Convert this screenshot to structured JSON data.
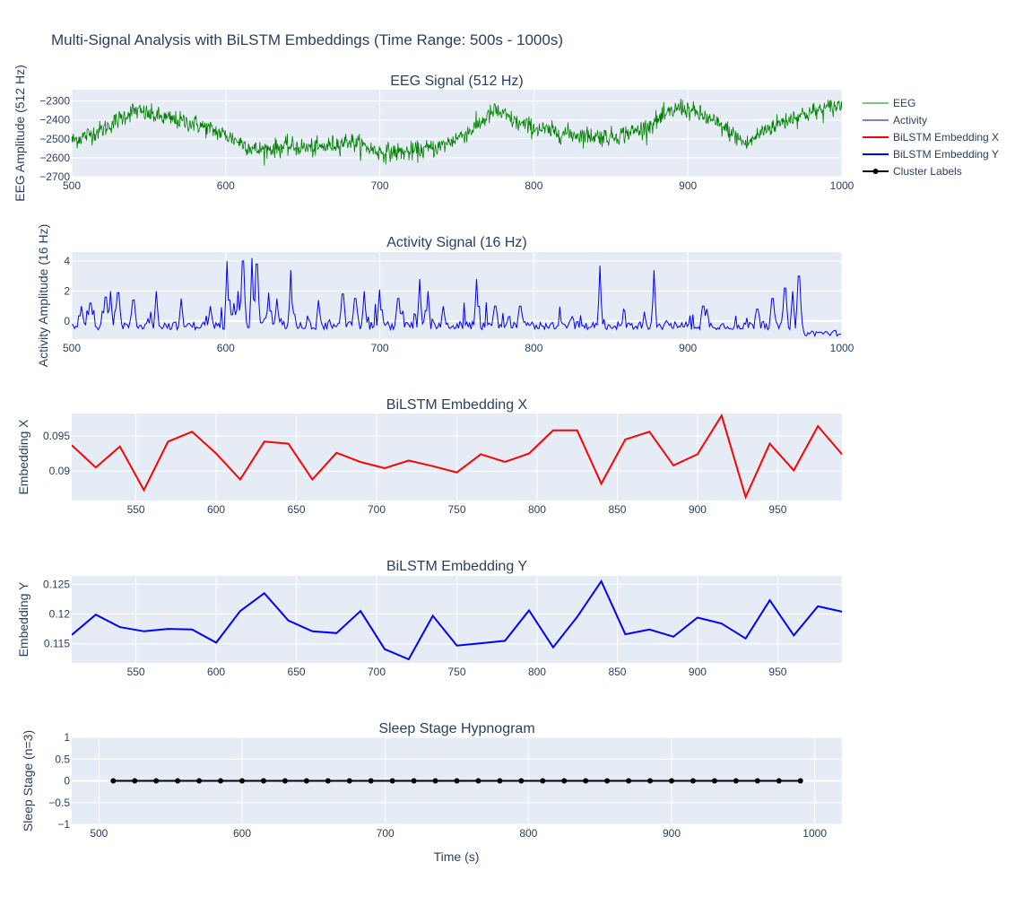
{
  "title": "Multi-Signal Analysis with BiLSTM Embeddings (Time Range: 500s - 1000s)",
  "xlabel": "Time (s)",
  "legend": [
    {
      "name": "EEG",
      "color": "#008000",
      "style": "thin-line"
    },
    {
      "name": "Activity",
      "color": "#00008b",
      "style": "thin-line"
    },
    {
      "name": "BiLSTM Embedding X",
      "color": "#ff0000",
      "style": "line"
    },
    {
      "name": "BiLSTM Embedding Y",
      "color": "#0000ff",
      "style": "line"
    },
    {
      "name": "Cluster Labels",
      "color": "#000000",
      "style": "line-marker"
    }
  ],
  "colors": {
    "plot_bg": "#e5ecf6",
    "grid": "#ffffff",
    "text": "#2a3f5f"
  },
  "chart_data": [
    {
      "id": "eeg",
      "type": "line",
      "title": "EEG Signal (512 Hz)",
      "ylabel": "EEG Amplitude (512 Hz)",
      "xlim": [
        500,
        1000
      ],
      "ylim": [
        -2700,
        -2240
      ],
      "xticks": [
        500,
        600,
        700,
        800,
        900,
        1000
      ],
      "yticks": [
        -2700,
        -2600,
        -2500,
        -2400,
        -2300
      ],
      "ytick_labels": [
        "−2700",
        "−2600",
        "−2500",
        "−2400",
        "−2300"
      ],
      "series": [
        {
          "name": "EEG",
          "color": "#008000",
          "envelope_x": [
            500,
            520,
            540,
            560,
            580,
            600,
            620,
            640,
            660,
            680,
            700,
            720,
            740,
            760,
            775,
            790,
            810,
            830,
            850,
            870,
            885,
            895,
            910,
            925,
            938,
            950,
            970,
            985,
            1000
          ],
          "envelope_y": [
            -2510,
            -2450,
            -2350,
            -2390,
            -2420,
            -2480,
            -2560,
            -2540,
            -2550,
            -2510,
            -2570,
            -2570,
            -2540,
            -2450,
            -2350,
            -2420,
            -2460,
            -2480,
            -2490,
            -2450,
            -2380,
            -2330,
            -2380,
            -2450,
            -2530,
            -2450,
            -2380,
            -2350,
            -2320
          ],
          "noise_amplitude": 45,
          "samples": 1400
        }
      ]
    },
    {
      "id": "activity",
      "type": "line",
      "title": "Activity Signal (16 Hz)",
      "ylabel": "Activity Amplitude (16 Hz)",
      "xlim": [
        500,
        1000
      ],
      "ylim": [
        -1.2,
        4.6
      ],
      "xticks": [
        500,
        600,
        700,
        800,
        900,
        1000
      ],
      "yticks": [
        0,
        2,
        4
      ],
      "series": [
        {
          "name": "Activity",
          "color": "#0000ff",
          "baseline": -0.3,
          "noise": [
            0.55,
            1.3
          ],
          "spikes": [
            [
              506,
              1.0
            ],
            [
              512,
              1.2
            ],
            [
              522,
              1.6
            ],
            [
              525,
              2.0
            ],
            [
              530,
              1.9
            ],
            [
              540,
              1.4
            ],
            [
              555,
              2.0
            ],
            [
              571,
              1.5
            ],
            [
              590,
              1.0
            ],
            [
              601,
              4.0
            ],
            [
              605,
              1.2
            ],
            [
              608,
              2.0
            ],
            [
              611,
              4.0
            ],
            [
              617,
              4.2
            ],
            [
              620,
              3.8
            ],
            [
              628,
              1.9
            ],
            [
              633,
              1.5
            ],
            [
              642,
              3.4
            ],
            [
              660,
              1.4
            ],
            [
              676,
              1.8
            ],
            [
              684,
              1.5
            ],
            [
              690,
              2.0
            ],
            [
              700,
              2.1
            ],
            [
              712,
              1.5
            ],
            [
              726,
              2.8
            ],
            [
              731,
              2.0
            ],
            [
              741,
              1.0
            ],
            [
              763,
              2.8
            ],
            [
              775,
              1.0
            ],
            [
              791,
              1.0
            ],
            [
              825,
              0.3
            ],
            [
              843,
              3.7
            ],
            [
              878,
              3.4
            ],
            [
              910,
              1.0
            ],
            [
              945,
              0.8
            ],
            [
              955,
              1.5
            ],
            [
              963,
              2.2
            ],
            [
              968,
              2.0
            ],
            [
              972,
              3.0
            ]
          ],
          "quiet_after": 975
        }
      ]
    },
    {
      "id": "emb-x",
      "type": "line",
      "title": "BiLSTM Embedding X",
      "ylabel": "Embedding X",
      "xlim": [
        510,
        990
      ],
      "ylim": [
        0.0858,
        0.0982
      ],
      "xticks": [
        550,
        600,
        650,
        700,
        750,
        800,
        850,
        900,
        950
      ],
      "yticks": [
        0.09,
        0.095
      ],
      "series": [
        {
          "name": "BiLSTM Embedding X",
          "color": "#ff0000",
          "x": [
            510,
            525,
            540,
            555,
            570,
            585,
            600,
            615,
            630,
            645,
            660,
            675,
            690,
            705,
            720,
            735,
            750,
            765,
            780,
            795,
            810,
            825,
            840,
            855,
            870,
            885,
            900,
            915,
            930,
            945,
            960,
            975,
            990
          ],
          "y": [
            0.0937,
            0.0905,
            0.0935,
            0.0873,
            0.0942,
            0.0956,
            0.0925,
            0.0888,
            0.0942,
            0.0939,
            0.0888,
            0.0926,
            0.0913,
            0.0904,
            0.0915,
            0.0907,
            0.0898,
            0.0924,
            0.0913,
            0.0925,
            0.0958,
            0.0958,
            0.0882,
            0.0945,
            0.0956,
            0.0908,
            0.0924,
            0.0979,
            0.0863,
            0.0939,
            0.0901,
            0.0964,
            0.0924
          ]
        }
      ]
    },
    {
      "id": "emb-y",
      "type": "line",
      "title": "BiLSTM Embedding Y",
      "ylabel": "Embedding Y",
      "xlim": [
        510,
        990
      ],
      "ylim": [
        0.1118,
        0.1264
      ],
      "xticks": [
        550,
        600,
        650,
        700,
        750,
        800,
        850,
        900,
        950
      ],
      "yticks": [
        0.115,
        0.12,
        0.125
      ],
      "series": [
        {
          "name": "BiLSTM Embedding Y",
          "color": "#0000ff",
          "x": [
            510,
            525,
            540,
            555,
            570,
            585,
            600,
            615,
            630,
            645,
            660,
            675,
            690,
            705,
            720,
            735,
            750,
            765,
            780,
            795,
            810,
            825,
            840,
            855,
            870,
            885,
            900,
            915,
            930,
            945,
            960,
            975,
            990
          ],
          "y": [
            0.1165,
            0.1199,
            0.1178,
            0.1171,
            0.1175,
            0.1174,
            0.1152,
            0.1205,
            0.1235,
            0.1189,
            0.1171,
            0.1168,
            0.1205,
            0.1141,
            0.1124,
            0.1197,
            0.1147,
            0.1151,
            0.1155,
            0.1206,
            0.1144,
            0.1195,
            0.1255,
            0.1166,
            0.1174,
            0.1162,
            0.1194,
            0.1184,
            0.1159,
            0.1223,
            0.1164,
            0.1213,
            0.1204
          ]
        }
      ]
    },
    {
      "id": "hypno",
      "type": "line",
      "title": "Sleep Stage Hypnogram",
      "ylabel": "Sleep Stage (n=3)",
      "xlim": [
        481,
        1019
      ],
      "ylim": [
        -1,
        1
      ],
      "xticks": [
        500,
        600,
        700,
        800,
        900,
        1000
      ],
      "yticks": [
        -1,
        -0.5,
        0,
        0.5,
        1
      ],
      "ytick_labels": [
        "−1",
        "−0.5",
        "0",
        "0.5",
        "1"
      ],
      "series": [
        {
          "name": "Cluster Labels",
          "color": "#000000",
          "markers": true,
          "x": [
            510,
            525,
            540,
            555,
            570,
            585,
            600,
            615,
            630,
            645,
            660,
            675,
            690,
            705,
            720,
            735,
            750,
            765,
            780,
            795,
            810,
            825,
            840,
            855,
            870,
            885,
            900,
            915,
            930,
            945,
            960,
            975,
            990
          ],
          "y": [
            0,
            0,
            0,
            0,
            0,
            0,
            0,
            0,
            0,
            0,
            0,
            0,
            0,
            0,
            0,
            0,
            0,
            0,
            0,
            0,
            0,
            0,
            0,
            0,
            0,
            0,
            0,
            0,
            0,
            0,
            0,
            0,
            0
          ]
        }
      ]
    }
  ]
}
